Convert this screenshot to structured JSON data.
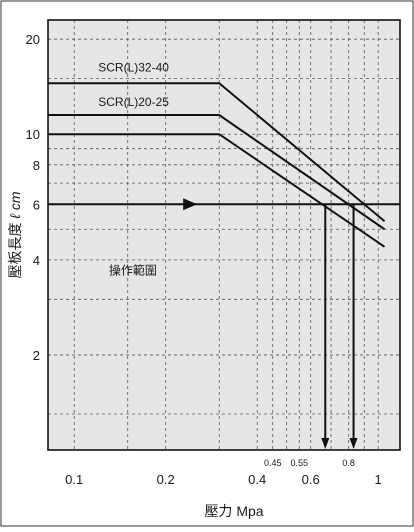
{
  "chart_data": {
    "type": "line",
    "title": "",
    "xlabel": "壓力 Mpa",
    "ylabel_cjk": "壓板長度",
    "ylabel_unit": "ℓ cm",
    "x_scale": "log",
    "y_scale": "log",
    "xlim": [
      0.082,
      1.18
    ],
    "ylim": [
      1.0,
      23.0
    ],
    "x_ticks": [
      {
        "value": 0.1,
        "label": "0.1"
      },
      {
        "value": 0.2,
        "label": "0.2"
      },
      {
        "value": 0.4,
        "label": "0.4"
      },
      {
        "value": 0.6,
        "label": "0.6"
      },
      {
        "value": 1.0,
        "label": "1"
      }
    ],
    "x_minor_labels": [
      {
        "value": 0.45,
        "label": "0.45"
      },
      {
        "value": 0.55,
        "label": "0.55"
      },
      {
        "value": 0.8,
        "label": "0.8"
      }
    ],
    "y_ticks": [
      {
        "value": 2,
        "label": "2"
      },
      {
        "value": 4,
        "label": "4"
      },
      {
        "value": 6,
        "label": "6"
      },
      {
        "value": 8,
        "label": "8"
      },
      {
        "value": 10,
        "label": "10"
      },
      {
        "value": 20,
        "label": "20"
      }
    ],
    "x_grid": [
      0.1,
      0.15,
      0.2,
      0.3,
      0.4,
      0.45,
      0.5,
      0.55,
      0.6,
      0.7,
      0.8,
      0.9,
      1.0
    ],
    "y_grid": [
      1.3,
      2,
      3,
      4,
      5,
      6,
      7,
      8,
      9,
      10,
      15,
      20
    ],
    "series": [
      {
        "name": "SCR(L)32-40",
        "x": [
          0.082,
          0.3,
          1.05
        ],
        "y": [
          14.5,
          14.5,
          5.3
        ]
      },
      {
        "name": "",
        "x": [
          0.082,
          0.3,
          1.05
        ],
        "y": [
          11.5,
          11.5,
          5.0
        ]
      },
      {
        "name": "SCR(L)20-25",
        "x": [
          0.082,
          0.3,
          1.05
        ],
        "y": [
          10.0,
          10.0,
          4.4
        ]
      }
    ],
    "series_labels": [
      {
        "text": "SCR(L)32-40",
        "x": 0.12,
        "y": 15.8
      },
      {
        "text": "SCR(L)20-25",
        "x": 0.12,
        "y": 12.3
      }
    ],
    "guide_line": {
      "y": 6,
      "x_from": 0.082,
      "x_to": 1.18,
      "arrow_at_x": 0.25
    },
    "drop_lines": [
      {
        "x": 0.67,
        "y_from": 6,
        "y_to": 1.0
      },
      {
        "x": 0.83,
        "y_from": 6,
        "y_to": 1.0
      }
    ],
    "annotation": {
      "text": "操作範圍",
      "x": 0.13,
      "y": 3.6
    },
    "grid": true,
    "legend": "none",
    "colors": {
      "line": "#111111",
      "grid": "#555555",
      "plot_bg": "#e6e6e6"
    }
  }
}
